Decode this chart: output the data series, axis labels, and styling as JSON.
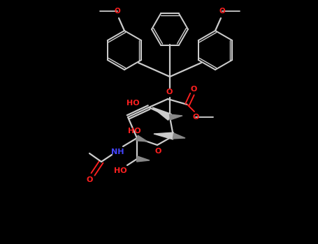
{
  "bg_color": "#000000",
  "bond_color": "#cccccc",
  "red_color": "#ff2020",
  "blue_color": "#4444ff",
  "dark_gray": "#888888",
  "line_width": 1.6,
  "figsize": [
    4.55,
    3.5
  ],
  "dpi": 100,
  "xlim": [
    0,
    455
  ],
  "ylim": [
    0,
    350
  ]
}
